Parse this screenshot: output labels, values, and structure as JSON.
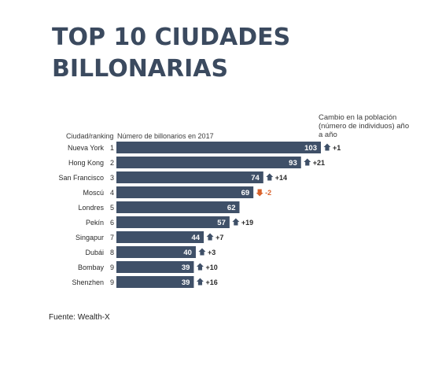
{
  "title_line1": "TOP 10 CIUDADES",
  "title_line2": "BILLONARIAS",
  "header_city_rank": "Ciudad/ranking",
  "header_number": "Número de billonarios en 2017",
  "header_change": "Cambio en la población (número de individuos) año a año",
  "source": "Fuente: Wealth-X",
  "colors": {
    "bar": "#3f5068",
    "up": "#3f5068",
    "down": "#d9622b"
  },
  "chart_data": {
    "type": "bar",
    "orientation": "horizontal",
    "categories": [
      "Nueva York",
      "Hong Kong",
      "San Francisco",
      "Moscú",
      "Londres",
      "Pekín",
      "Singapur",
      "Dubái",
      "Bombay",
      "Shenzhen"
    ],
    "ranks": [
      "1",
      "2",
      "3",
      "4",
      "5",
      "6",
      "7",
      "8",
      "9",
      "9"
    ],
    "values": [
      103,
      93,
      74,
      69,
      62,
      57,
      44,
      40,
      39,
      39
    ],
    "changes": [
      "+1",
      "+21",
      "+14",
      "-2",
      "",
      "+19",
      "+7",
      "+3",
      "+10",
      "+16"
    ],
    "change_direction": [
      "up",
      "up",
      "up",
      "down",
      "",
      "up",
      "up",
      "up",
      "up",
      "up"
    ],
    "xlim": [
      0,
      103
    ]
  }
}
